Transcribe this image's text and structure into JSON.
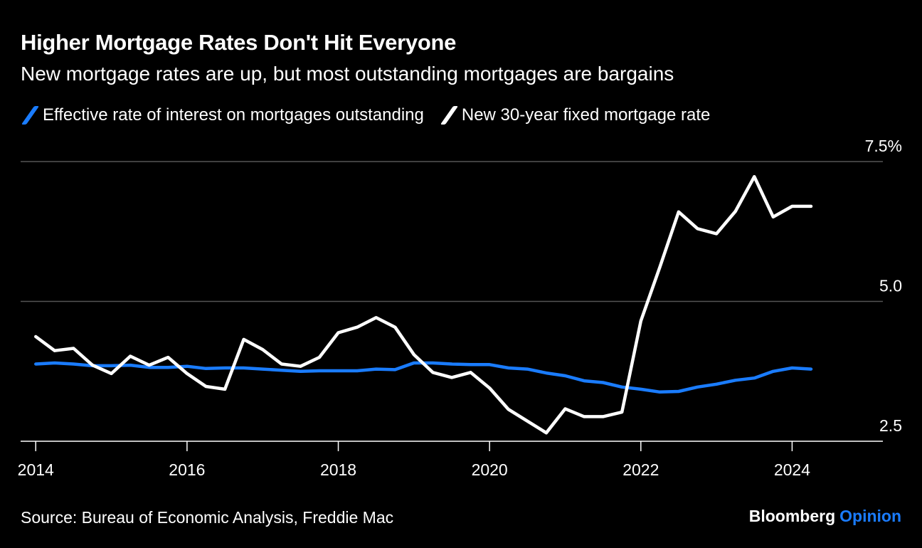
{
  "header": {
    "title": "Higher Mortgage Rates Don't Hit Everyone",
    "subtitle": "New mortgage rates are up, but most outstanding mortgages are bargains"
  },
  "footer": {
    "source": "Source: Bureau of Economic Analysis, Freddie Mac",
    "brand_main": "Bloomberg",
    "brand_accent": "Opinion"
  },
  "colors": {
    "background": "#000000",
    "effective_rate": "#1a7cff",
    "new_rate": "#ffffff",
    "grid": "#555555"
  },
  "chart_data": {
    "type": "line",
    "title": "Higher Mortgage Rates Don't Hit Everyone",
    "subtitle": "New mortgage rates are up, but most outstanding mortgages are bargains",
    "xlabel": "",
    "ylabel": "",
    "xlim": [
      2013.8,
      2025.2
    ],
    "ylim": [
      2.5,
      7.5
    ],
    "x_ticks": [
      2014,
      2016,
      2018,
      2020,
      2022,
      2024
    ],
    "x_tick_labels": [
      "2014",
      "2016",
      "2018",
      "2020",
      "2022",
      "2024"
    ],
    "y_ticks": [
      2.5,
      5.0,
      7.5
    ],
    "y_tick_labels": [
      "2.5",
      "5.0",
      "7.5%"
    ],
    "y_axis_side": "right",
    "legend_position": "top-left",
    "series": [
      {
        "name": "Effective rate of interest on mortgages outstanding",
        "color": "#1a7cff",
        "x": [
          2014.0,
          2014.25,
          2014.5,
          2014.75,
          2015.0,
          2015.25,
          2015.5,
          2015.75,
          2016.0,
          2016.25,
          2016.5,
          2016.75,
          2017.0,
          2017.25,
          2017.5,
          2017.75,
          2018.0,
          2018.25,
          2018.5,
          2018.75,
          2019.0,
          2019.25,
          2019.5,
          2019.75,
          2020.0,
          2020.25,
          2020.5,
          2020.75,
          2021.0,
          2021.25,
          2021.5,
          2021.75,
          2022.0,
          2022.25,
          2022.5,
          2022.75,
          2023.0,
          2023.25,
          2023.5,
          2023.75,
          2024.0,
          2024.25
        ],
        "values": [
          3.88,
          3.9,
          3.88,
          3.85,
          3.85,
          3.86,
          3.82,
          3.82,
          3.84,
          3.8,
          3.81,
          3.81,
          3.79,
          3.77,
          3.75,
          3.76,
          3.76,
          3.76,
          3.79,
          3.78,
          3.9,
          3.9,
          3.88,
          3.87,
          3.87,
          3.81,
          3.79,
          3.72,
          3.67,
          3.58,
          3.55,
          3.47,
          3.43,
          3.38,
          3.39,
          3.47,
          3.52,
          3.59,
          3.63,
          3.75,
          3.81,
          3.79
        ]
      },
      {
        "name": "New 30-year fixed mortgage rate",
        "color": "#ffffff",
        "x": [
          2014.0,
          2014.25,
          2014.5,
          2014.75,
          2015.0,
          2015.25,
          2015.5,
          2015.75,
          2016.0,
          2016.25,
          2016.5,
          2016.75,
          2017.0,
          2017.25,
          2017.5,
          2017.75,
          2018.0,
          2018.25,
          2018.5,
          2018.75,
          2019.0,
          2019.25,
          2019.5,
          2019.75,
          2020.0,
          2020.25,
          2020.5,
          2020.75,
          2021.0,
          2021.25,
          2021.5,
          2021.75,
          2022.0,
          2022.25,
          2022.5,
          2022.75,
          2023.0,
          2023.25,
          2023.5,
          2023.75,
          2024.0,
          2024.25
        ],
        "values": [
          4.37,
          4.12,
          4.16,
          3.86,
          3.71,
          4.02,
          3.86,
          4.0,
          3.71,
          3.48,
          3.43,
          4.32,
          4.14,
          3.88,
          3.84,
          4.0,
          4.44,
          4.54,
          4.71,
          4.54,
          4.05,
          3.73,
          3.64,
          3.73,
          3.45,
          3.07,
          2.86,
          2.65,
          3.08,
          2.94,
          2.94,
          3.02,
          4.65,
          5.61,
          6.6,
          6.3,
          6.21,
          6.61,
          7.23,
          6.51,
          6.7,
          6.7
        ]
      }
    ]
  }
}
